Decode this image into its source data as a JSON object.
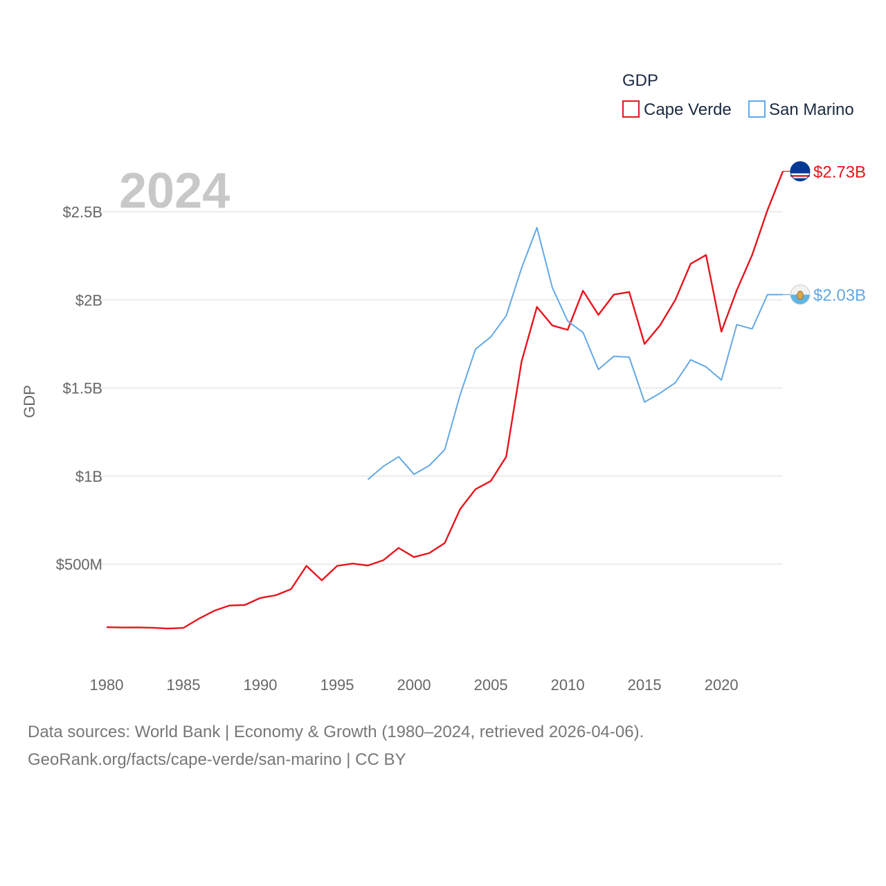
{
  "chart_data": {
    "type": "line",
    "year_label": "2024",
    "ylabel": "GDP",
    "ylim": [
      0,
      2800000000
    ],
    "xlim": [
      1980,
      2024
    ],
    "y_ticks": [
      {
        "value": 500000000,
        "label": "$500M"
      },
      {
        "value": 1000000000,
        "label": "$1B"
      },
      {
        "value": 1500000000,
        "label": "$1.5B"
      },
      {
        "value": 2000000000,
        "label": "$2B"
      },
      {
        "value": 2500000000,
        "label": "$2.5B"
      }
    ],
    "x_ticks": [
      1980,
      1985,
      1990,
      1995,
      2000,
      2005,
      2010,
      2015,
      2020
    ],
    "legend": {
      "title": "GDP",
      "placement": "top-right"
    },
    "series": [
      {
        "name": "Cape Verde",
        "color": "#e8141c",
        "end_label": "$2.73B",
        "flag_icon": "cape-verde-flag-icon",
        "x": [
          1980,
          1981,
          1982,
          1983,
          1984,
          1985,
          1986,
          1987,
          1988,
          1989,
          1990,
          1991,
          1992,
          1993,
          1994,
          1995,
          1996,
          1997,
          1998,
          1999,
          2000,
          2001,
          2002,
          2003,
          2004,
          2005,
          2006,
          2007,
          2008,
          2009,
          2010,
          2011,
          2012,
          2013,
          2014,
          2015,
          2016,
          2017,
          2018,
          2019,
          2020,
          2021,
          2022,
          2023,
          2024
        ],
        "values": [
          142000000,
          140000000,
          141000000,
          139000000,
          134000000,
          138000000,
          190000000,
          235000000,
          265000000,
          268000000,
          308000000,
          323000000,
          358000000,
          490000000,
          408000000,
          490000000,
          503000000,
          492000000,
          522000000,
          592000000,
          540000000,
          563000000,
          620000000,
          812000000,
          925000000,
          972000000,
          1110000000,
          1650000000,
          1960000000,
          1855000000,
          1830000000,
          2052000000,
          1915000000,
          2030000000,
          2045000000,
          1750000000,
          1855000000,
          2000000000,
          2205000000,
          2255000000,
          1820000000,
          2055000000,
          2255000000,
          2510000000,
          2730000000
        ]
      },
      {
        "name": "San Marino",
        "color": "#62a8e5",
        "end_label": "$2.03B",
        "flag_icon": "san-marino-flag-icon",
        "x": [
          1997,
          1998,
          1999,
          2000,
          2001,
          2002,
          2003,
          2004,
          2005,
          2006,
          2007,
          2008,
          2009,
          2010,
          2011,
          2012,
          2013,
          2014,
          2015,
          2016,
          2017,
          2018,
          2019,
          2020,
          2021,
          2022,
          2023,
          2024
        ],
        "values": [
          980000000,
          1055000000,
          1110000000,
          1010000000,
          1060000000,
          1150000000,
          1460000000,
          1720000000,
          1790000000,
          1910000000,
          2180000000,
          2410000000,
          2070000000,
          1880000000,
          1815000000,
          1605000000,
          1680000000,
          1675000000,
          1420000000,
          1470000000,
          1530000000,
          1660000000,
          1620000000,
          1545000000,
          1860000000,
          1835000000,
          2030000000,
          2030000000
        ]
      }
    ]
  },
  "footer": {
    "line1": "Data sources: World Bank | Economy & Growth (1980–2024, retrieved 2026-04-06).",
    "line2": "GeoRank.org/facts/cape-verde/san-marino | CC BY"
  }
}
